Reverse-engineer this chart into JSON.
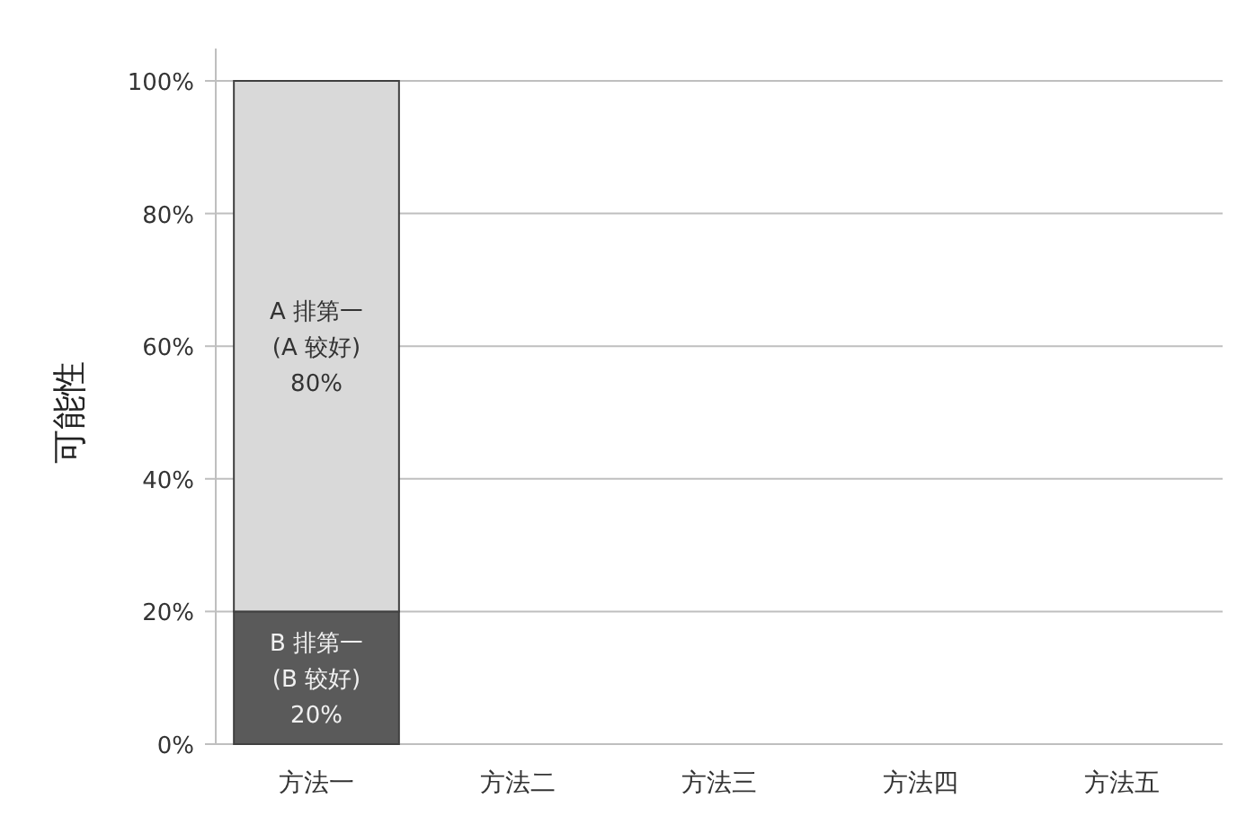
{
  "chart_data": {
    "type": "bar",
    "stacked": true,
    "ylabel": "可能性",
    "categories": [
      "方法一",
      "方法二",
      "方法三",
      "方法四",
      "方法五"
    ],
    "series": [
      {
        "color": "#5a5a5a",
        "values": [
          20,
          null,
          null,
          null,
          null
        ],
        "value_labels": [
          "B 排第一\n(B 较好)\n20%",
          null,
          null,
          null,
          null
        ]
      },
      {
        "color": "#d9d9d9",
        "values": [
          80,
          null,
          null,
          null,
          null
        ],
        "value_labels": [
          "A 排第一\n(A 较好)\n80%",
          null,
          null,
          null,
          null
        ]
      }
    ],
    "ylim": [
      0,
      100
    ],
    "yticks": [
      {
        "value": 0,
        "label": "0%"
      },
      {
        "value": 20,
        "label": "20%"
      },
      {
        "value": 40,
        "label": "40%"
      },
      {
        "value": 60,
        "label": "60%"
      },
      {
        "value": 80,
        "label": "80%"
      },
      {
        "value": 100,
        "label": "100%"
      }
    ],
    "grid": "y"
  }
}
